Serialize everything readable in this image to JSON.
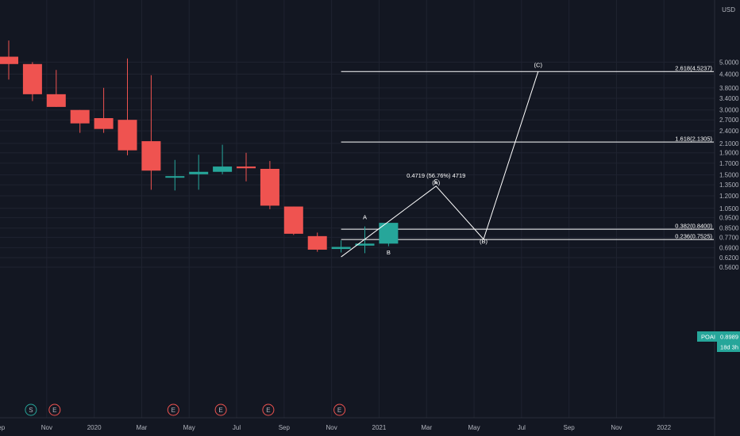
{
  "currency_label": "USD",
  "ticker": {
    "name": "POAI",
    "value": "0.8989",
    "countdown": "18d 3h"
  },
  "colors": {
    "up": "#26a69a",
    "down": "#ef5350",
    "bg": "#131722",
    "grid": "#1f2330",
    "text": "#b2b5be",
    "line": "#ffffff",
    "event_e": "#ef5350",
    "event_s": "#26a69a"
  },
  "chart_data": {
    "type": "candlestick",
    "scale": "log",
    "y_range": [
      0.55,
      6.3
    ],
    "x_ticks": [
      "Sep",
      "Nov",
      "2020",
      "Mar",
      "May",
      "Jul",
      "Sep",
      "Nov",
      "2021",
      "Mar",
      "May",
      "Jul",
      "Sep",
      "Nov",
      "2022"
    ],
    "y_ticks": [
      "5.0000",
      "4.4000",
      "3.8000",
      "3.4000",
      "3.0000",
      "2.7000",
      "2.4000",
      "2.1000",
      "1.9000",
      "1.7000",
      "1.5000",
      "1.3500",
      "1.2000",
      "1.0500",
      "0.9500",
      "0.8500",
      "0.7700",
      "0.6900",
      "0.6200",
      "0.5600"
    ],
    "candles": [
      {
        "open": 5.3,
        "high": 6.3,
        "low": 4.15,
        "close": 4.9
      },
      {
        "open": 4.9,
        "high": 5.0,
        "low": 3.3,
        "close": 3.55
      },
      {
        "open": 3.55,
        "high": 4.6,
        "low": 3.1,
        "close": 3.1
      },
      {
        "open": 3.0,
        "high": 3.0,
        "low": 2.35,
        "close": 2.6
      },
      {
        "open": 2.75,
        "high": 3.8,
        "low": 2.35,
        "close": 2.45
      },
      {
        "open": 2.7,
        "high": 5.2,
        "low": 1.85,
        "close": 1.95
      },
      {
        "open": 2.15,
        "high": 4.35,
        "low": 1.28,
        "close": 1.57
      },
      {
        "open": 1.46,
        "high": 1.76,
        "low": 1.27,
        "close": 1.48
      },
      {
        "open": 1.51,
        "high": 1.86,
        "low": 1.28,
        "close": 1.55
      },
      {
        "open": 1.55,
        "high": 2.07,
        "low": 1.51,
        "close": 1.64
      },
      {
        "open": 1.64,
        "high": 1.9,
        "low": 1.4,
        "close": 1.61
      },
      {
        "open": 1.6,
        "high": 1.74,
        "low": 1.04,
        "close": 1.08
      },
      {
        "open": 1.07,
        "high": 1.07,
        "low": 0.79,
        "close": 0.8
      },
      {
        "open": 0.78,
        "high": 0.81,
        "low": 0.66,
        "close": 0.675
      },
      {
        "open": 0.68,
        "high": 0.745,
        "low": 0.655,
        "close": 0.695
      },
      {
        "open": 0.705,
        "high": 0.865,
        "low": 0.65,
        "close": 0.72
      },
      {
        "open": 0.72,
        "high": 0.895,
        "low": 0.7,
        "close": 0.8989
      }
    ],
    "fib_levels": [
      {
        "label": "2.618(4.5237)",
        "value": 4.5237
      },
      {
        "label": "1.618(2.1305)",
        "value": 2.1305
      },
      {
        "label": "0.382(0.8400)",
        "value": 0.84
      },
      {
        "label": "0.236(0.7525)",
        "value": 0.7525
      }
    ],
    "wave": {
      "points": [
        {
          "slot": 14,
          "price": 0.625
        },
        {
          "slot": 18,
          "price": 1.33
        },
        {
          "slot": 20,
          "price": 0.755
        },
        {
          "slot": 22.3,
          "price": 4.52
        }
      ],
      "labels": [
        {
          "text": "A",
          "slot": 15,
          "price": 0.935
        },
        {
          "text": "B",
          "slot": 16,
          "price": 0.64
        },
        {
          "text": "C",
          "slot": 18,
          "price": 1.375
        },
        {
          "text": "(A)",
          "slot": 18,
          "price": 1.35
        },
        {
          "text": "(B)",
          "slot": 20,
          "price": 0.722
        },
        {
          "text": "(C)",
          "slot": 22.3,
          "price": 4.75
        }
      ],
      "measure_label": "0.4719 (56.76%) 4719"
    },
    "events": [
      {
        "text": "S",
        "slot": 1,
        "kind": "s"
      },
      {
        "text": "E",
        "slot": 2,
        "kind": "e"
      },
      {
        "text": "E",
        "slot": 7,
        "kind": "e"
      },
      {
        "text": "E",
        "slot": 9,
        "kind": "e"
      },
      {
        "text": "E",
        "slot": 11,
        "kind": "e"
      },
      {
        "text": "E",
        "slot": 14,
        "kind": "e"
      }
    ]
  }
}
